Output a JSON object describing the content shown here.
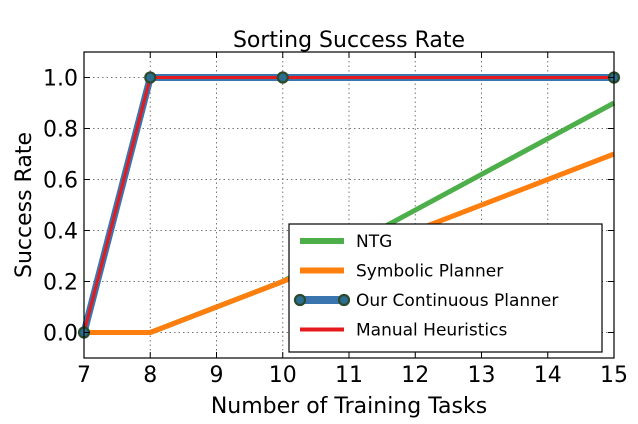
{
  "chart_data": {
    "type": "line",
    "title": "Sorting Success Rate",
    "xlabel": "Number of Training Tasks",
    "ylabel": "Success Rate",
    "xlim": [
      7,
      15
    ],
    "ylim": [
      -0.1,
      1.1
    ],
    "xticks": [
      7,
      8,
      9,
      10,
      11,
      12,
      13,
      14,
      15
    ],
    "yticks": [
      0.0,
      0.2,
      0.4,
      0.6,
      0.8,
      1.0
    ],
    "ytick_labels": [
      "0.0",
      "0.2",
      "0.4",
      "0.6",
      "0.8",
      "1.0"
    ],
    "grid": true,
    "legend": "bottom-right",
    "series": [
      {
        "name": "NTG",
        "color": "#4daf4a",
        "marker": false,
        "x": [
          7,
          8,
          10,
          15
        ],
        "y": [
          0.0,
          0.0,
          0.2,
          0.9
        ]
      },
      {
        "name": "Symbolic Planner",
        "color": "#ff7f0e",
        "marker": false,
        "x": [
          7,
          8,
          10,
          15
        ],
        "y": [
          0.0,
          0.0,
          0.2,
          0.7
        ]
      },
      {
        "name": "Our Continuous Planner",
        "color": "#3b75af",
        "marker": true,
        "x": [
          7,
          8,
          10,
          15
        ],
        "y": [
          0.0,
          1.0,
          1.0,
          1.0
        ]
      },
      {
        "name": "Manual Heuristics",
        "color": "#e41a1c",
        "marker": false,
        "x": [
          7,
          8,
          10,
          15
        ],
        "y": [
          0.0,
          1.0,
          1.0,
          1.0
        ]
      }
    ]
  }
}
